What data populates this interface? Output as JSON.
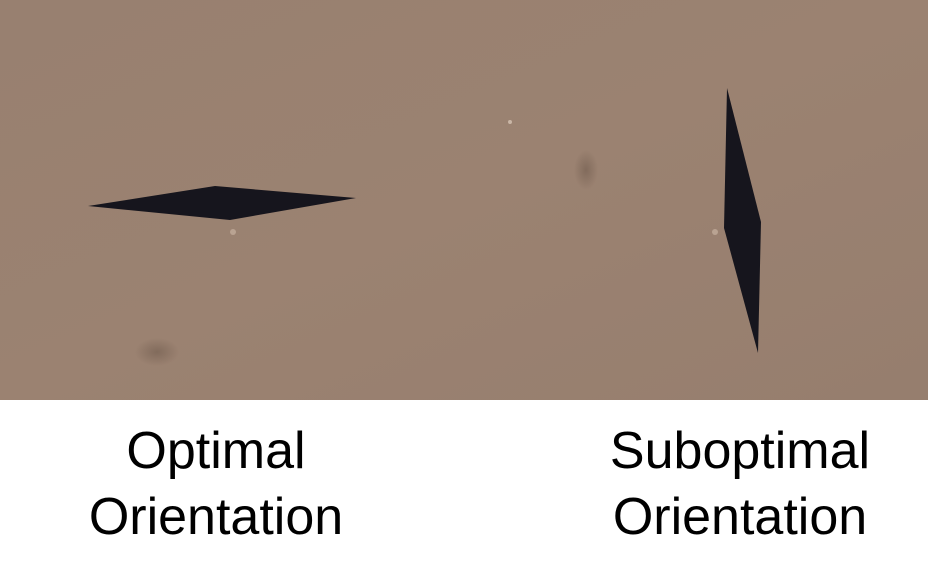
{
  "colors": {
    "background": "#ffffff",
    "photo_surface": "#9a8070",
    "marker": "#16151d",
    "caption_text": "#000000"
  },
  "photo": {
    "subject": "two dark elongated diamond-shaped marks on a brown surface"
  },
  "captions": {
    "left": {
      "line1": "Optimal",
      "line2": "Orientation"
    },
    "right": {
      "line1": "Suboptimal",
      "line2": "Orientation"
    }
  }
}
